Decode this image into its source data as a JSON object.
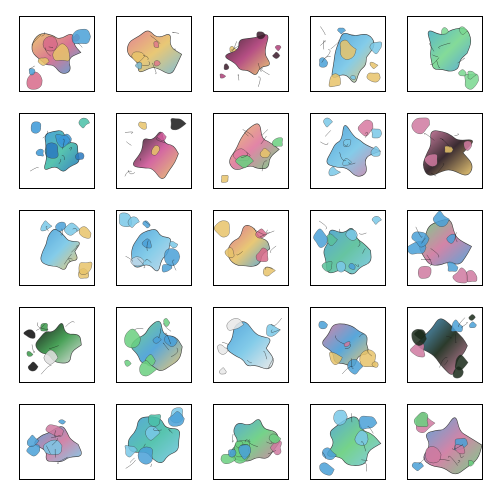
{
  "figure": {
    "rows": 5,
    "cols": 5,
    "tiles": [
      {
        "palette": "yellow-pink-blue",
        "colors": [
          "#e8c46a",
          "#d86a8a",
          "#4aa0d8"
        ]
      },
      {
        "palette": "pink-yellow",
        "colors": [
          "#e07a8a",
          "#e8c46a",
          "#7ab8d0"
        ]
      },
      {
        "palette": "dark-purple-pink",
        "colors": [
          "#3a1a2a",
          "#b0407a",
          "#e8c46a"
        ]
      },
      {
        "palette": "blue",
        "colors": [
          "#4aa0d8",
          "#7ac8e8",
          "#e8c46a"
        ]
      },
      {
        "palette": "blue-green",
        "colors": [
          "#4ab0c8",
          "#7ad890",
          "#4aa0d8"
        ]
      },
      {
        "palette": "blue-teal",
        "colors": [
          "#3a98d8",
          "#4ac0a8",
          "#2a7ac0"
        ]
      },
      {
        "palette": "dark-pink",
        "colors": [
          "#1a1a1a",
          "#d05a9a",
          "#e8c46a"
        ]
      },
      {
        "palette": "yellow-pink-green",
        "colors": [
          "#e8c46a",
          "#e07aa0",
          "#6ad080"
        ]
      },
      {
        "palette": "blue",
        "colors": [
          "#4aa0d8",
          "#7ac8e8",
          "#d87aa0"
        ]
      },
      {
        "palette": "pink-dark",
        "colors": [
          "#d07aa0",
          "#2a1a20",
          "#e8c46a"
        ]
      },
      {
        "palette": "blue",
        "colors": [
          "#4aa0d8",
          "#7ac8e8",
          "#e8c46a"
        ]
      },
      {
        "palette": "blue",
        "colors": [
          "#4aa0d8",
          "#7ac8e8",
          "#c0d8e8"
        ]
      },
      {
        "palette": "pink-yellow",
        "colors": [
          "#d86a8a",
          "#e8c46a",
          "#4aa0d8"
        ]
      },
      {
        "palette": "blue-green",
        "colors": [
          "#4aa0d8",
          "#5ac09a",
          "#7ac8e8"
        ]
      },
      {
        "palette": "green-pink",
        "colors": [
          "#6ad080",
          "#d07aa0",
          "#4aa0d8"
        ]
      },
      {
        "palette": "black-green",
        "colors": [
          "#0a0a0a",
          "#3a9a4a",
          "#e0e0e0"
        ]
      },
      {
        "palette": "green-blue",
        "colors": [
          "#6ad080",
          "#4aa0d8",
          "#e8c46a"
        ]
      },
      {
        "palette": "blue-light",
        "colors": [
          "#4aa0d8",
          "#7ac8e8",
          "#e8e8e8"
        ]
      },
      {
        "palette": "pink-blue",
        "colors": [
          "#d07aa0",
          "#4aa0d8",
          "#e8c46a"
        ]
      },
      {
        "palette": "mixed",
        "colors": [
          "#4aa0d8",
          "#1a2a1a",
          "#d07aa0"
        ]
      },
      {
        "palette": "blue-pink",
        "colors": [
          "#4aa0d8",
          "#d07aa0",
          "#7ac8e8"
        ]
      },
      {
        "palette": "blue-teal",
        "colors": [
          "#4aa0d8",
          "#4ac0a8",
          "#7ac8e8"
        ]
      },
      {
        "palette": "blue-green-pink",
        "colors": [
          "#4aa0d8",
          "#6ad080",
          "#d07aa0"
        ]
      },
      {
        "palette": "blue-green",
        "colors": [
          "#4aa0d8",
          "#6ad080",
          "#7ac8e8"
        ]
      },
      {
        "palette": "blue-pink",
        "colors": [
          "#4aa0d8",
          "#d07aa0",
          "#6ad080"
        ]
      }
    ]
  }
}
